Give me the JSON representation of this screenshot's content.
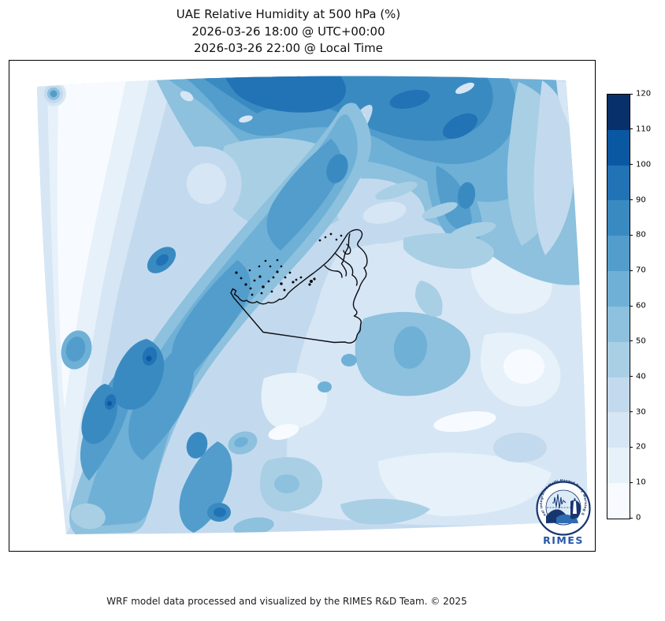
{
  "figure": {
    "background": "#ffffff",
    "frame_color": "#000000",
    "text_color": "#111111"
  },
  "title": {
    "line1": "UAE Relative Humidity at 500 hPa (%)",
    "line2": "2026-03-26 18:00 @ UTC+00:00",
    "line3": "2026-03-26 22:00 @ Local Time"
  },
  "map": {
    "boundary_label": "United Arab Emirates boundary",
    "boundary_color": "#0b0b14"
  },
  "logo": {
    "wordmark": "RIMES",
    "ring_text": "Regional Integrated Multi-Hazard Early Warning System",
    "navy": "#17356e",
    "blue": "#2357a8",
    "wave_blue": "#2e6db4",
    "sky": "#dcebf7"
  },
  "footer": {
    "credit": "WRF model data processed and visualized by the RIMES R&D Team. © 2025"
  },
  "chart_data": {
    "type": "heatmap",
    "variable": "Relative Humidity",
    "pressure_level": "500 hPa",
    "units": "%",
    "region": "UAE",
    "valid_time_utc": "2026-03-26 18:00 @ UTC+00:00",
    "valid_time_local": "2026-03-26 22:00 @ Local Time",
    "colormap": "Blues",
    "levels": [
      0,
      10,
      20,
      30,
      40,
      50,
      60,
      70,
      80,
      90,
      100,
      110,
      120
    ],
    "colors": [
      "#f7fbff",
      "#e7f1fa",
      "#d6e6f4",
      "#c3daee",
      "#a9cfe5",
      "#8dc1dd",
      "#6fb0d7",
      "#529dcc",
      "#3a8ac2",
      "#2272b6",
      "#0a58a2",
      "#08306b"
    ],
    "colorbar": {
      "orientation": "vertical",
      "position": "right",
      "ticks": [
        0,
        10,
        20,
        30,
        40,
        50,
        60,
        70,
        80,
        90,
        100,
        110,
        120
      ]
    },
    "overlay": "UAE administrative boundary with coastal islands",
    "grid_estimate": {
      "note": "Coarse visual estimate of RH (%) on an 8x10 grid, rows north to south, columns west to east",
      "values": [
        [
          30,
          15,
          75,
          85,
          85,
          85,
          80,
          75,
          60,
          40
        ],
        [
          20,
          15,
          65,
          85,
          90,
          80,
          85,
          70,
          50,
          45
        ],
        [
          10,
          25,
          70,
          55,
          80,
          75,
          70,
          60,
          55,
          50
        ],
        [
          5,
          35,
          75,
          50,
          70,
          55,
          50,
          45,
          40,
          45
        ],
        [
          15,
          55,
          85,
          70,
          55,
          40,
          55,
          50,
          30,
          30
        ],
        [
          25,
          70,
          90,
          60,
          40,
          30,
          45,
          35,
          20,
          25
        ],
        [
          40,
          80,
          70,
          45,
          35,
          25,
          35,
          25,
          15,
          20
        ],
        [
          45,
          70,
          55,
          40,
          30,
          35,
          25,
          20,
          15,
          25
        ]
      ]
    }
  }
}
